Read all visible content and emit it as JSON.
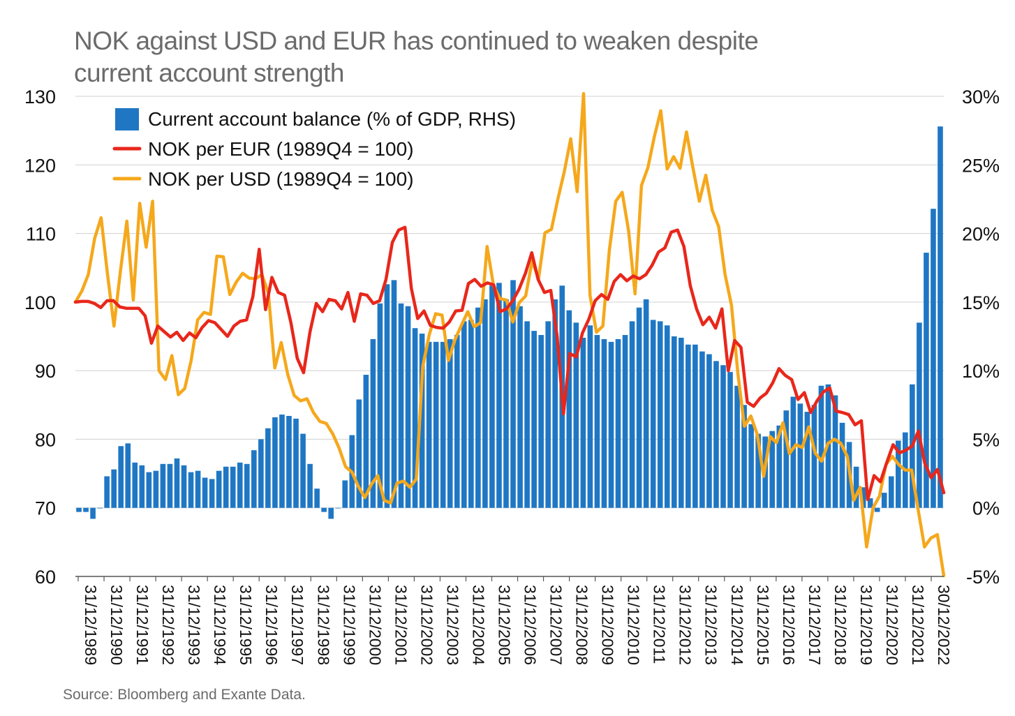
{
  "chart_data": {
    "type": "bar+line",
    "title_lines": [
      "NOK against USD and EUR has continued to weaken despite",
      "current account strength"
    ],
    "source": "Source: Bloomberg and Exante Data.",
    "left_axis": {
      "ylim": [
        60,
        130
      ],
      "ticks": [
        "60",
        "70",
        "80",
        "90",
        "100",
        "110",
        "120",
        "130"
      ]
    },
    "right_axis": {
      "ylim": [
        -5,
        30
      ],
      "ticks": [
        "-5%",
        "0%",
        "5%",
        "10%",
        "15%",
        "20%",
        "25%",
        "30%"
      ]
    },
    "x_ticks": [
      "31/12/1989",
      "31/12/1990",
      "31/12/1991",
      "31/12/1992",
      "31/12/1993",
      "31/12/1994",
      "31/12/1995",
      "31/12/1996",
      "31/12/1997",
      "31/12/1998",
      "31/12/1999",
      "31/12/2000",
      "31/12/2001",
      "31/12/2002",
      "31/12/2003",
      "31/12/2004",
      "31/12/2005",
      "31/12/2006",
      "31/12/2007",
      "31/12/2008",
      "31/12/2009",
      "31/12/2010",
      "31/12/2011",
      "31/12/2012",
      "31/12/2013",
      "31/12/2014",
      "31/12/2015",
      "31/12/2016",
      "31/12/2017",
      "31/12/2018",
      "31/12/2019",
      "31/12/2020",
      "31/12/2021",
      "30/12/2022"
    ],
    "legend": [
      {
        "label": "Current account balance (% of GDP, RHS)",
        "kind": "bar",
        "color": "#1f77c4"
      },
      {
        "label": "NOK per EUR (1989Q4 = 100)",
        "kind": "line",
        "color": "#e8271b"
      },
      {
        "label": "NOK per USD (1989Q4 = 100)",
        "kind": "line",
        "color": "#f5a81c"
      }
    ],
    "series": [
      {
        "name": "Current account balance (% of GDP, RHS)",
        "axis": "right",
        "color": "#1f77c4",
        "values": [
          -0.3,
          -0.3,
          -0.8,
          0.0,
          2.3,
          2.8,
          4.5,
          4.7,
          3.3,
          3.1,
          2.6,
          2.7,
          3.2,
          3.2,
          3.6,
          3.1,
          2.6,
          2.7,
          2.2,
          2.1,
          2.7,
          3.0,
          3.0,
          3.3,
          3.2,
          4.2,
          5.0,
          5.8,
          6.6,
          6.8,
          6.7,
          6.5,
          5.4,
          3.2,
          1.4,
          -0.3,
          -0.8,
          0.0,
          2.0,
          5.3,
          7.9,
          9.7,
          12.3,
          14.9,
          16.3,
          16.6,
          14.9,
          14.7,
          13.1,
          12.7,
          12.1,
          12.1,
          12.1,
          12.3,
          12.6,
          13.6,
          13.7,
          14.6,
          15.2,
          16.2,
          16.4,
          15.2,
          16.6,
          14.7,
          13.6,
          12.9,
          12.6,
          13.6,
          15.2,
          16.2,
          14.4,
          13.5,
          12.4,
          13.3,
          12.6,
          12.3,
          12.1,
          12.3,
          12.6,
          13.6,
          14.6,
          15.2,
          13.7,
          13.6,
          13.3,
          12.5,
          12.4,
          11.9,
          11.9,
          11.4,
          11.2,
          10.7,
          10.4,
          9.9,
          8.9,
          7.5,
          6.1,
          5.4,
          5.2,
          5.6,
          6.0,
          7.1,
          8.1,
          7.6,
          7.0,
          7.5,
          8.9,
          9.0,
          8.2,
          6.2,
          4.8,
          3.0,
          1.5,
          0.7,
          -0.3,
          1.1,
          2.3,
          4.9,
          5.5,
          9.0,
          13.5,
          18.6,
          21.8,
          27.8
        ]
      },
      {
        "name": "NOK per EUR (1989Q4 = 100)",
        "axis": "left",
        "color": "#e8271b",
        "values": [
          100.0,
          100.1,
          100.1,
          99.8,
          99.2,
          100.2,
          100.2,
          99.3,
          99.1,
          99.1,
          99.1,
          98.0,
          94.0,
          96.5,
          95.7,
          94.9,
          95.6,
          94.4,
          95.5,
          94.8,
          96.3,
          97.3,
          97.0,
          96.0,
          95.0,
          96.5,
          97.2,
          97.4,
          100.8,
          107.7,
          98.9,
          103.6,
          101.4,
          101.0,
          97.0,
          91.8,
          89.7,
          95.6,
          99.8,
          98.6,
          100.4,
          100.2,
          99.0,
          101.4,
          97.2,
          101.2,
          101.0,
          99.8,
          100.2,
          103.3,
          108.7,
          110.5,
          110.9,
          102.0,
          97.6,
          98.7,
          96.6,
          96.3,
          96.2,
          97.1,
          98.7,
          98.8,
          102.7,
          103.3,
          102.3,
          102.8,
          102.5,
          98.6,
          99.0,
          100.2,
          101.9,
          104.2,
          107.2,
          103.3,
          101.4,
          101.7,
          95.0,
          83.7,
          92.5,
          92.0,
          95.5,
          97.5,
          100.2,
          101.1,
          100.4,
          103.0,
          104.0,
          103.1,
          103.8,
          103.4,
          104.0,
          105.4,
          107.3,
          107.9,
          110.2,
          110.5,
          108.1,
          102.4,
          99.0,
          96.7,
          97.8,
          96.2,
          99.0,
          90.0,
          94.4,
          93.4,
          85.4,
          84.8,
          86.0,
          86.7,
          88.2,
          90.3,
          89.3,
          88.7,
          85.8,
          86.8,
          83.9,
          85.6,
          86.9,
          87.5,
          84.1,
          83.9,
          83.6,
          82.1,
          82.7,
          71.2,
          74.7,
          73.8,
          76.6,
          79.2,
          78.0,
          78.4,
          79.0,
          81.2,
          76.5,
          74.4,
          75.6,
          72.2
        ]
      },
      {
        "name": "NOK per USD (1989Q4 = 100)",
        "axis": "left",
        "color": "#f5a81c",
        "values": [
          100.0,
          101.6,
          104.0,
          109.3,
          112.3,
          104.0,
          96.5,
          104.5,
          111.8,
          100.3,
          114.4,
          108.0,
          114.7,
          90.0,
          88.7,
          92.2,
          86.5,
          87.4,
          91.5,
          97.4,
          98.5,
          98.2,
          106.7,
          106.6,
          101.1,
          102.9,
          104.2,
          103.5,
          103.4,
          104.0,
          101.3,
          90.4,
          94.1,
          89.5,
          86.4,
          85.6,
          85.9,
          83.9,
          82.6,
          82.3,
          80.8,
          78.7,
          76.0,
          75.2,
          73.1,
          71.5,
          73.4,
          74.7,
          71.1,
          70.7,
          73.6,
          73.9,
          73.0,
          74.2,
          90.6,
          95.2,
          98.3,
          98.1,
          91.5,
          94.5,
          96.6,
          98.6,
          96.4,
          97.0,
          108.1,
          102.4,
          100.5,
          100.3,
          97.1,
          99.9,
          100.9,
          106.0,
          103.4,
          110.1,
          110.6,
          115.0,
          119.0,
          123.8,
          116.1,
          130.4,
          101.0,
          95.6,
          96.5,
          107.5,
          114.7,
          116.0,
          110.4,
          101.2,
          117.0,
          119.6,
          124.1,
          127.9,
          119.4,
          121.2,
          119.5,
          124.8,
          119.6,
          114.7,
          118.5,
          113.4,
          111.0,
          104.0,
          99.5,
          89.5,
          81.9,
          83.4,
          80.7,
          74.6,
          80.4,
          79.5,
          82.4,
          77.9,
          79.2,
          78.8,
          81.8,
          78.0,
          76.8,
          79.4,
          80.0,
          79.4,
          77.5,
          71.1,
          73.0,
          64.3,
          70.0,
          71.7,
          76.3,
          77.5,
          76.3,
          75.5,
          75.5,
          69.8,
          64.3,
          65.6,
          66.1,
          60.1
        ]
      }
    ]
  }
}
